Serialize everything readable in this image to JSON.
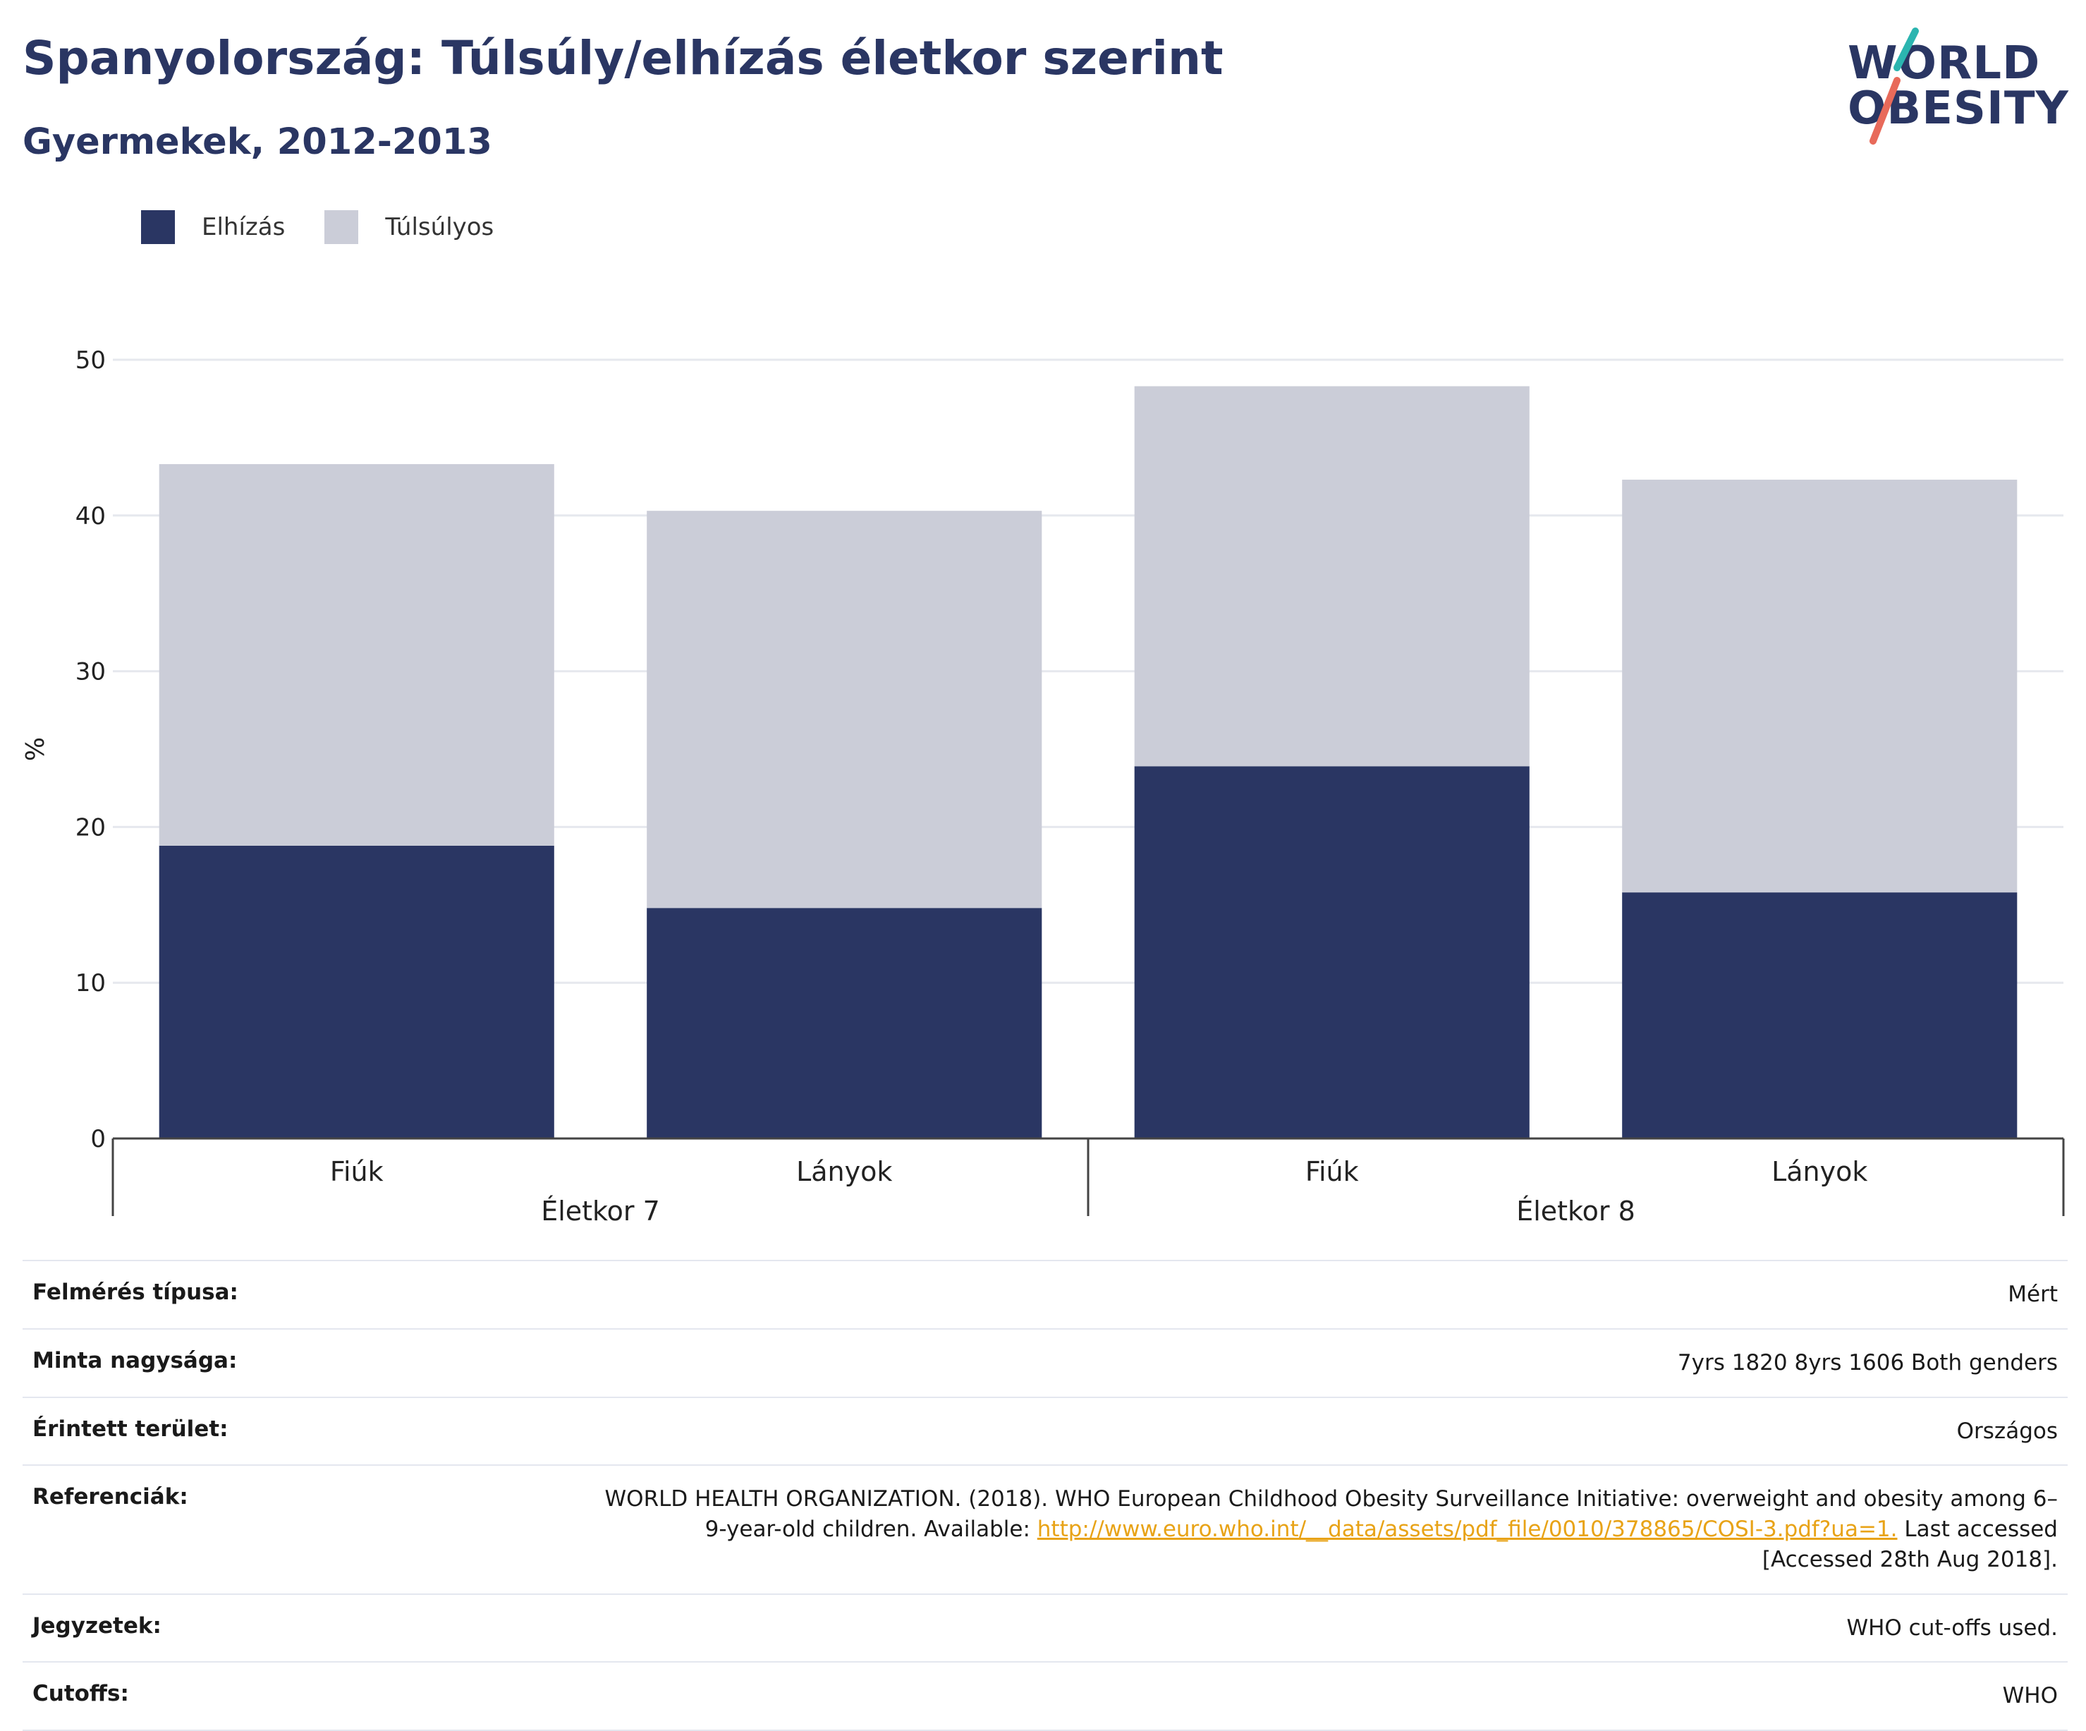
{
  "header": {
    "title": "Spanyolország: Túlsúly/elhízás életkor szerint",
    "subtitle": "Gyermekek, 2012-2013"
  },
  "logo": {
    "line1": "WORLD",
    "line2": "OBESITY"
  },
  "legend": [
    {
      "label": "Elhízás",
      "color": "#2a3663"
    },
    {
      "label": "Túlsúlyos",
      "color": "#cbcdd8"
    }
  ],
  "chart_data": {
    "type": "bar",
    "stacked": true,
    "ylabel": "%",
    "ylim": [
      0,
      50
    ],
    "yticks": [
      0,
      10,
      20,
      30,
      40,
      50
    ],
    "grid": true,
    "legend_position": "top-left",
    "categories": [
      "Fiúk",
      "Lányok",
      "Fiúk",
      "Lányok"
    ],
    "groups": [
      {
        "label": "Életkor 7",
        "span": 2
      },
      {
        "label": "Életkor 8",
        "span": 2
      }
    ],
    "series": [
      {
        "name": "Elhízás",
        "values": [
          18.8,
          14.8,
          23.9,
          15.8
        ],
        "color": "#2a3663"
      },
      {
        "name": "Túlsúlyos",
        "values": [
          24.5,
          25.5,
          24.4,
          26.5
        ],
        "color": "#cbcdd8"
      }
    ]
  },
  "info": {
    "survey_type": {
      "label": "Felmérés típusa:",
      "value": "Mért"
    },
    "sample_size": {
      "label": "Minta nagysága:",
      "value": "7yrs 1820 8yrs 1606 Both genders"
    },
    "area": {
      "label": "Érintett terület:",
      "value": "Országos"
    },
    "references": {
      "label": "Referenciák:",
      "text_before": "WORLD HEALTH ORGANIZATION. (2018). WHO European Childhood Obesity Surveillance Initiative: overweight and obesity among 6–9-year-old children. Available: ",
      "link": "http://www.euro.who.int/__data/assets/pdf_file/0010/378865/COSI-3.pdf?ua=1.",
      "text_after": " Last accessed [Accessed 28th Aug 2018]."
    },
    "notes": {
      "label": "Jegyzetek:",
      "value": "WHO cut-offs used."
    },
    "cutoffs": {
      "label": "Cutoffs:",
      "value": "WHO"
    }
  }
}
